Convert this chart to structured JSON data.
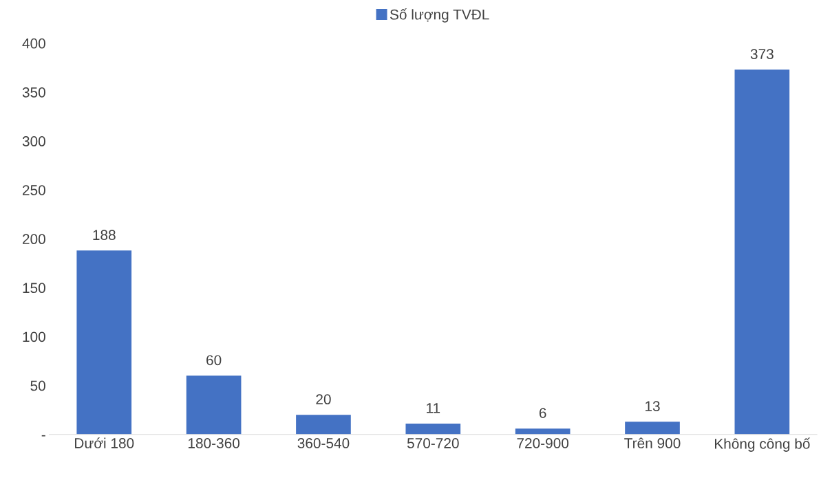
{
  "chart_data": {
    "type": "bar",
    "categories": [
      "Dưới 180",
      "180-360",
      "360-540",
      "570-720",
      "720-900",
      "Trên 900",
      "Không công bố"
    ],
    "series": [
      {
        "name": "Số lượng TVĐL",
        "color": "#4472c4",
        "values": [
          188,
          60,
          20,
          11,
          6,
          13,
          373
        ]
      }
    ],
    "ylim": [
      0,
      400
    ],
    "yticks": [
      {
        "value": 0,
        "label": "-"
      },
      50,
      100,
      150,
      200,
      250,
      300,
      350,
      400
    ],
    "data_labels": true,
    "grid": false,
    "legend": "top"
  }
}
